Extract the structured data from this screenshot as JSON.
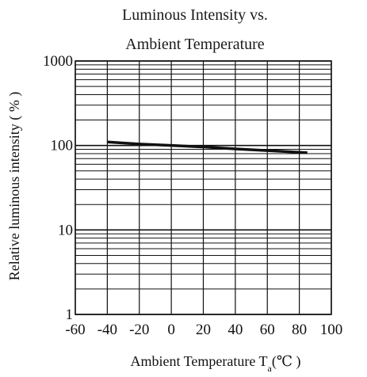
{
  "chart_data": {
    "type": "line",
    "title_line1": "Luminous Intensity vs.",
    "title_line2": "Ambient Temperature",
    "xlabel": "Ambient Temperature T",
    "xlabel_sub": "a",
    "xlabel_unit": "(℃ )",
    "ylabel": "Relative luminous intensity ( % )",
    "y_scale": "log",
    "xlim": [
      -60,
      100
    ],
    "ylim": [
      1,
      1000
    ],
    "x_ticks": [
      -60,
      -40,
      -20,
      0,
      20,
      40,
      60,
      80,
      100
    ],
    "x_tick_labels": [
      "-60",
      "-40",
      "-20",
      "0",
      "20",
      "40",
      "60",
      "80",
      "100"
    ],
    "y_ticks": [
      1,
      10,
      100,
      1000
    ],
    "y_tick_labels": [
      "1",
      "10",
      "100",
      "1000"
    ],
    "grid": true,
    "series": [
      {
        "x": [
          -40,
          -20,
          0,
          20,
          40,
          60,
          80,
          85
        ],
        "y": [
          110,
          104,
          100,
          96,
          91,
          87,
          83,
          82
        ]
      }
    ],
    "colors": {
      "line": "#111111",
      "grid": "#111111",
      "background": "#ffffff"
    }
  }
}
